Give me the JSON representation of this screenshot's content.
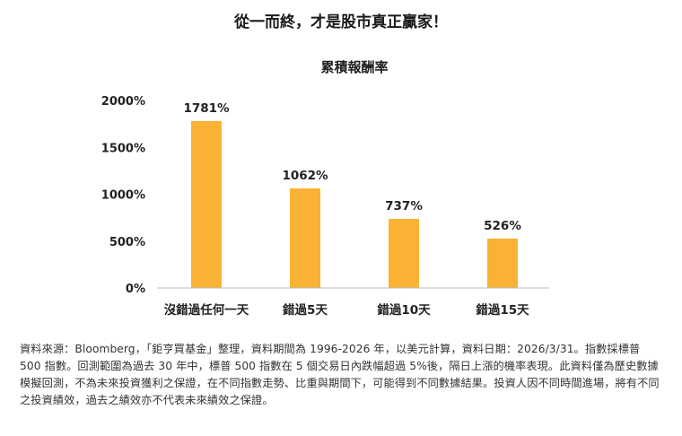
{
  "headline": "從一而終，才是股市真正贏家！",
  "chart_data": {
    "type": "bar",
    "title": "累積報酬率",
    "categories": [
      "沒錯過任何一天",
      "錯過5天",
      "錯過10天",
      "錯過15天"
    ],
    "values": [
      1781,
      1062,
      737,
      526
    ],
    "value_labels": [
      "1781%",
      "1062%",
      "737%",
      "526%"
    ],
    "y_ticks": [
      0,
      500,
      1000,
      1500,
      2000
    ],
    "y_tick_labels": [
      "0%",
      "500%",
      "1000%",
      "1500%",
      "2000%"
    ],
    "ylim": [
      0,
      2000
    ],
    "xlabel": "",
    "ylabel": "",
    "grid": false,
    "bar_color": "#F9B233"
  },
  "footnote": "資料來源：Bloomberg，「鉅亨買基金」整理，資料期間為 1996-2026 年，以美元計算，資料日期：2026/3/31。指數採標普 500 指數。回測範圍為過去 30 年中，標普 500 指數在 5 個交易日內跌幅超過 5%後，隔日上漲的機率表現。此資料僅為歷史數據模擬回測，不為未來投資獲利之保證，在不同指數走勢、比重與期間下，可能得到不同數據結果。投資人因不同時間進場，將有不同之投資績效，過去之績效亦不代表未來績效之保證。"
}
